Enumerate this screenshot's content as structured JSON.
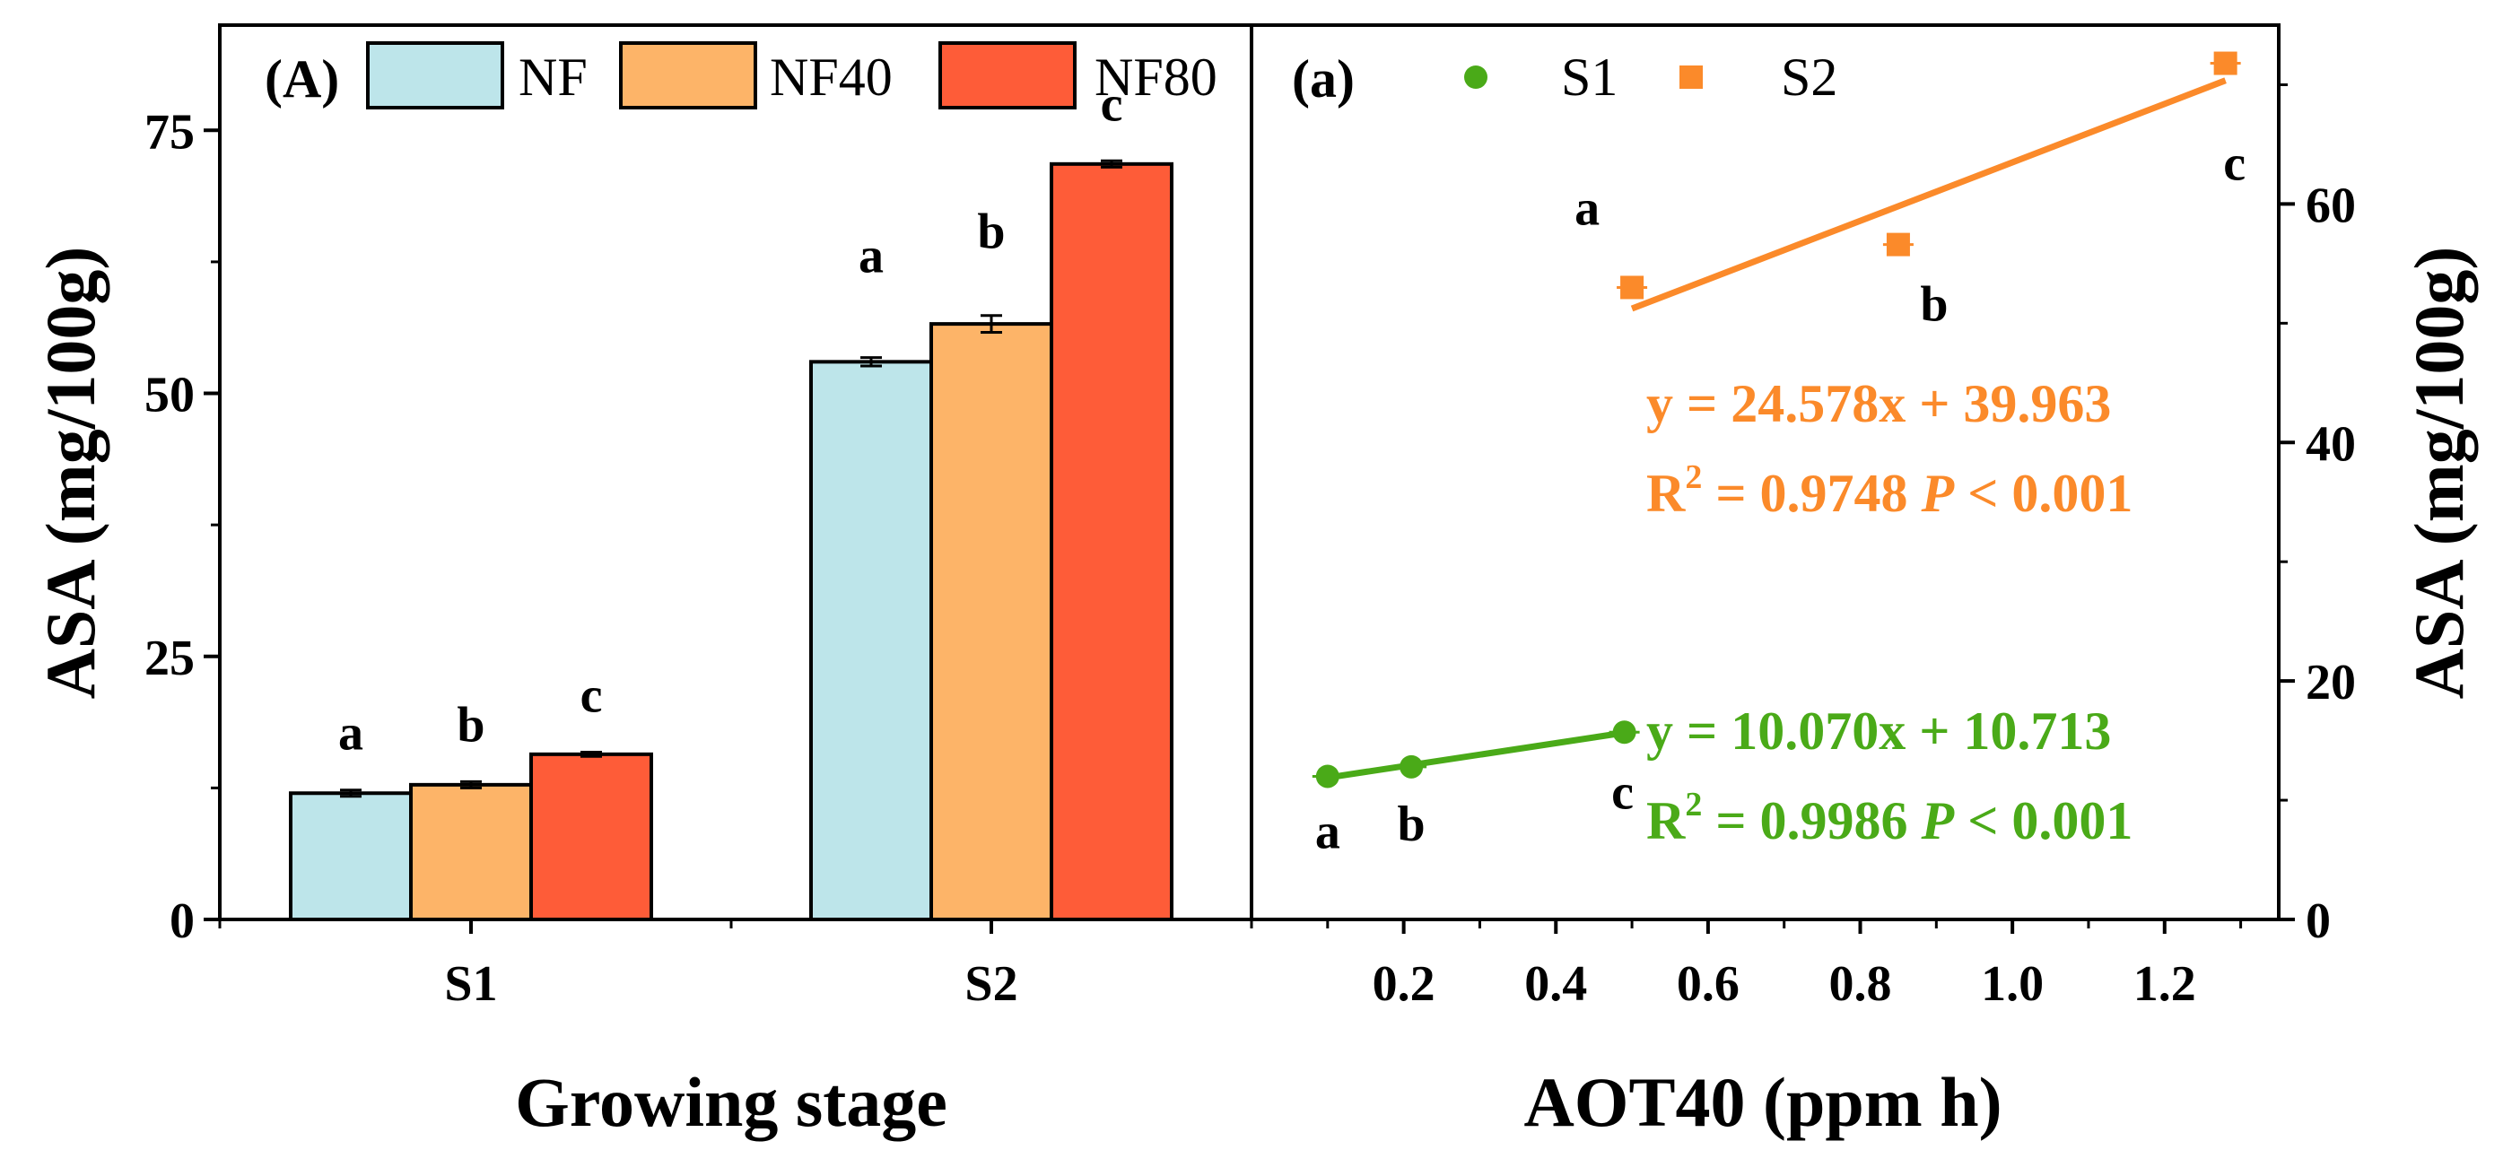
{
  "chart_data": [
    {
      "type": "bar",
      "panel_label": "(A)",
      "xlabel": "Growing stage",
      "ylabel": "ASA (mg/100g)",
      "ylim": [
        0,
        85
      ],
      "yticks": [
        0,
        25,
        50,
        75
      ],
      "ytick_labels": [
        "0",
        "25",
        "50",
        "75"
      ],
      "categories": [
        "S1",
        "S2"
      ],
      "series": [
        {
          "name": "NF",
          "color": "#bde5ea",
          "values": [
            12.0,
            53.0
          ],
          "errors": [
            0.3,
            0.4
          ],
          "letters": [
            "a",
            "a"
          ]
        },
        {
          "name": "NF40",
          "color": "#fdb468",
          "values": [
            12.8,
            56.6
          ],
          "errors": [
            0.3,
            0.8
          ],
          "letters": [
            "b",
            "b"
          ]
        },
        {
          "name": "NF80",
          "color": "#fe5c38",
          "values": [
            15.7,
            71.8
          ],
          "errors": [
            0.2,
            0.3
          ],
          "letters": [
            "c",
            "c"
          ]
        }
      ],
      "legend": {
        "placement": "top",
        "entries": [
          "NF",
          "NF40",
          "NF80"
        ]
      },
      "grid": false
    },
    {
      "type": "scatter",
      "panel_label": "(a)",
      "xlabel": "AOT40 (ppm h)",
      "ylabel": "ASA (mg/100g)",
      "xlim": [
        0.0,
        1.35
      ],
      "xticks": [
        0.2,
        0.4,
        0.6,
        0.8,
        1.0,
        1.2
      ],
      "xtick_labels": [
        "0.2",
        "0.4",
        "0.6",
        "0.8",
        "1.0",
        "1.2"
      ],
      "ylim": [
        0,
        75
      ],
      "yticks": [
        0,
        20,
        40,
        60
      ],
      "ytick_labels": [
        "0",
        "20",
        "40",
        "60"
      ],
      "y_axis_side": "right",
      "series": [
        {
          "name": "S1",
          "color": "#4aaa18",
          "marker": "circle",
          "x": [
            0.1,
            0.21,
            0.49
          ],
          "y": [
            12.0,
            12.8,
            15.7
          ],
          "letters": [
            "a",
            "b",
            "c"
          ],
          "fit": {
            "equation": "y = 10.070x + 10.713",
            "r2_prefix": "R",
            "r2_sup": "2",
            "r2_value": " = 0.9986  ",
            "p_symbol": "P",
            "p_value": " < 0.001",
            "x_range": [
              0.1,
              0.49
            ]
          }
        },
        {
          "name": "S2",
          "color": "#fb8a2a",
          "marker": "square",
          "x": [
            0.5,
            0.85,
            1.28
          ],
          "y": [
            53.0,
            56.6,
            71.8
          ],
          "letters": [
            "a",
            "b",
            "c"
          ],
          "fit": {
            "equation": "y = 24.578x + 39.963",
            "r2_prefix": "R",
            "r2_sup": "2",
            "r2_value": " = 0.9748  ",
            "p_symbol": "P",
            "p_value": " < 0.001",
            "x_range": [
              0.5,
              1.28
            ]
          }
        }
      ],
      "legend": {
        "placement": "top-left",
        "entries": [
          "S1",
          "S2"
        ]
      },
      "grid": false
    }
  ]
}
